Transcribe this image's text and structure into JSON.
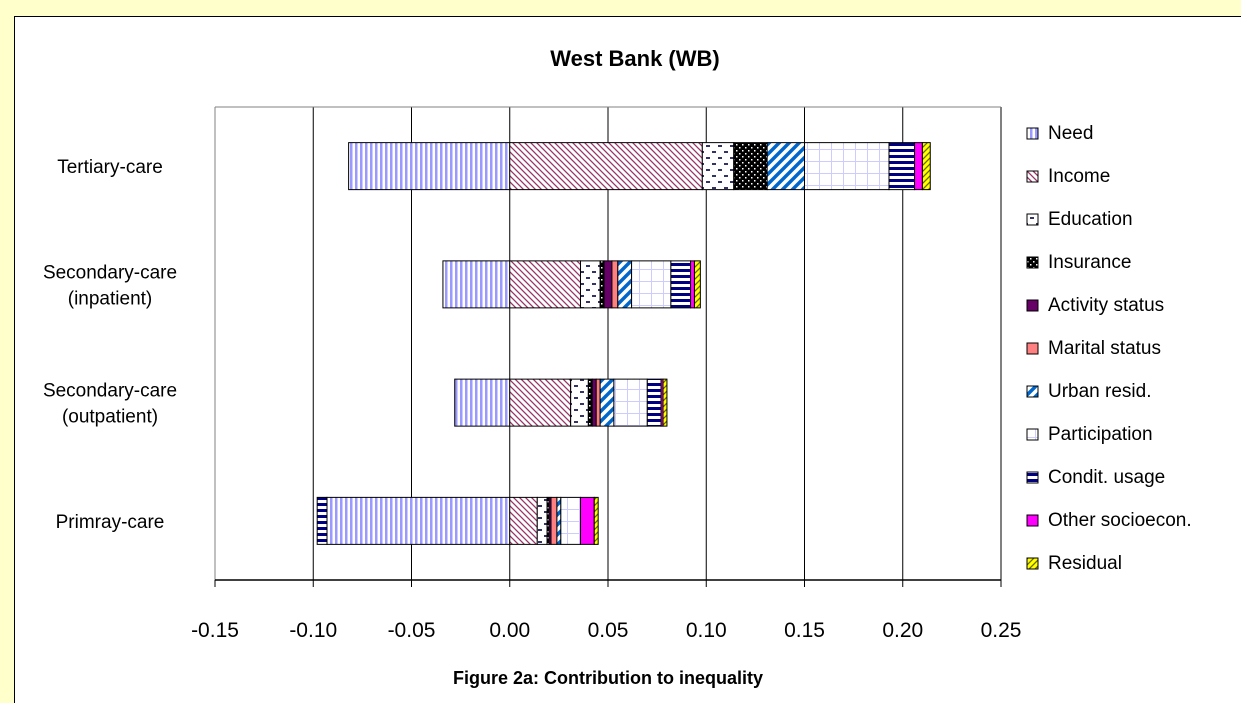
{
  "chart_data": {
    "type": "bar",
    "orientation": "horizontal",
    "stacked": true,
    "title": "West Bank (WB)",
    "xlabel": "Figure 2a: Contribution to inequality",
    "ylabel": "",
    "xlim": [
      -0.15,
      0.25
    ],
    "x_ticks": [
      "-0.15",
      "-0.10",
      "-0.05",
      "0.00",
      "0.05",
      "0.10",
      "0.15",
      "0.20",
      "0.25"
    ],
    "x_tick_values": [
      -0.15,
      -0.1,
      -0.05,
      0.0,
      0.05,
      0.1,
      0.15,
      0.2,
      0.25
    ],
    "grid": "vertical",
    "legend_position": "right",
    "categories": [
      [
        "Tertiary-care"
      ],
      [
        "Secondary-care",
        "(inpatient)"
      ],
      [
        "Secondary-care",
        "(outpatient)"
      ],
      [
        "Primray-care"
      ]
    ],
    "series": [
      {
        "name": "Need",
        "values": [
          -0.082,
          -0.034,
          -0.028,
          -0.093
        ]
      },
      {
        "name": "Income",
        "values": [
          0.098,
          0.036,
          0.031,
          0.014
        ]
      },
      {
        "name": "Education",
        "values": [
          0.016,
          0.01,
          0.009,
          0.005
        ]
      },
      {
        "name": "Insurance",
        "values": [
          0.017,
          0.002,
          0.002,
          0.001
        ]
      },
      {
        "name": "Activity status",
        "values": [
          0.0,
          0.004,
          0.002,
          0.001
        ]
      },
      {
        "name": "Marital status",
        "values": [
          0.0,
          0.003,
          0.002,
          0.003
        ]
      },
      {
        "name": "Urban resid.",
        "values": [
          0.019,
          0.007,
          0.007,
          0.002
        ]
      },
      {
        "name": "Participation",
        "values": [
          0.043,
          0.02,
          0.017,
          0.01
        ]
      },
      {
        "name": "Condit. usage",
        "values": [
          0.013,
          0.01,
          0.007,
          -0.005
        ]
      },
      {
        "name": "Other socioecon.",
        "values": [
          0.004,
          0.002,
          0.001,
          0.007
        ]
      },
      {
        "name": "Residual",
        "values": [
          0.004,
          0.003,
          0.002,
          0.002
        ]
      }
    ]
  }
}
